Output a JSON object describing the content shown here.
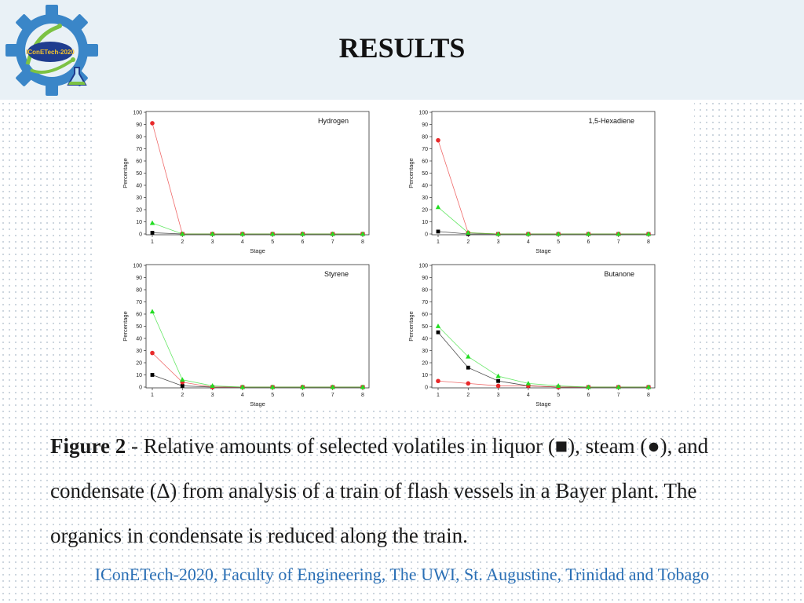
{
  "header": {
    "title": "RESULTS",
    "logo_text": "IConETech-2020",
    "colors": {
      "background": "#e9f1f6",
      "logo_gear": "#3a86c8",
      "logo_center": "#1f3d8f"
    }
  },
  "chart_data": [
    {
      "type": "line",
      "title": "Hydrogen",
      "xlabel": "Stage",
      "ylabel": "Percentage",
      "x": [
        1,
        2,
        3,
        4,
        5,
        6,
        7,
        8
      ],
      "xlim": [
        1,
        8
      ],
      "ylim": [
        0,
        100
      ],
      "yticks": [
        0,
        10,
        20,
        30,
        40,
        50,
        60,
        70,
        80,
        90,
        100
      ],
      "grid": false,
      "series": [
        {
          "marker": "square",
          "color": "#000000",
          "values": [
            1,
            0,
            0,
            0,
            0,
            0,
            0,
            0
          ]
        },
        {
          "marker": "circle",
          "color": "#e8292a",
          "values": [
            91,
            0,
            0,
            0,
            0,
            0,
            0,
            0
          ]
        },
        {
          "marker": "triangle",
          "color": "#22dd22",
          "values": [
            9,
            0,
            0,
            0,
            0,
            0,
            0,
            0
          ]
        }
      ]
    },
    {
      "type": "line",
      "title": "1,5-Hexadiene",
      "xlabel": "Stage",
      "ylabel": "Percentage",
      "x": [
        1,
        2,
        3,
        4,
        5,
        6,
        7,
        8
      ],
      "xlim": [
        1,
        8
      ],
      "ylim": [
        0,
        100
      ],
      "yticks": [
        0,
        10,
        20,
        30,
        40,
        50,
        60,
        70,
        80,
        90,
        100
      ],
      "grid": false,
      "series": [
        {
          "marker": "square",
          "color": "#000000",
          "values": [
            2,
            0,
            0,
            0,
            0,
            0,
            0,
            0
          ]
        },
        {
          "marker": "circle",
          "color": "#e8292a",
          "values": [
            77,
            1,
            0,
            0,
            0,
            0,
            0,
            0
          ]
        },
        {
          "marker": "triangle",
          "color": "#22dd22",
          "values": [
            22,
            1,
            0,
            0,
            0,
            0,
            0,
            0
          ]
        }
      ]
    },
    {
      "type": "line",
      "title": "Styrene",
      "xlabel": "Stage",
      "ylabel": "Percentage",
      "x": [
        1,
        2,
        3,
        4,
        5,
        6,
        7,
        8
      ],
      "xlim": [
        1,
        8
      ],
      "ylim": [
        0,
        100
      ],
      "yticks": [
        0,
        10,
        20,
        30,
        40,
        50,
        60,
        70,
        80,
        90,
        100
      ],
      "grid": false,
      "series": [
        {
          "marker": "square",
          "color": "#000000",
          "values": [
            10,
            1,
            0,
            0,
            0,
            0,
            0,
            0
          ]
        },
        {
          "marker": "circle",
          "color": "#e8292a",
          "values": [
            28,
            4,
            0,
            0,
            0,
            0,
            0,
            0
          ]
        },
        {
          "marker": "triangle",
          "color": "#22dd22",
          "values": [
            62,
            6,
            1,
            0,
            0,
            0,
            0,
            0
          ]
        }
      ]
    },
    {
      "type": "line",
      "title": "Butanone",
      "xlabel": "Stage",
      "ylabel": "Percentage",
      "x": [
        1,
        2,
        3,
        4,
        5,
        6,
        7,
        8
      ],
      "xlim": [
        1,
        8
      ],
      "ylim": [
        0,
        100
      ],
      "yticks": [
        0,
        10,
        20,
        30,
        40,
        50,
        60,
        70,
        80,
        90,
        100
      ],
      "grid": false,
      "series": [
        {
          "marker": "square",
          "color": "#000000",
          "values": [
            45,
            16,
            5,
            1,
            0,
            0,
            0,
            0
          ]
        },
        {
          "marker": "circle",
          "color": "#e8292a",
          "values": [
            5,
            3,
            1,
            1,
            0,
            0,
            0,
            0
          ]
        },
        {
          "marker": "triangle",
          "color": "#22dd22",
          "values": [
            50,
            25,
            9,
            3,
            1,
            0,
            0,
            0
          ]
        }
      ]
    }
  ],
  "caption": {
    "label": "Figure 2",
    "text": " - Relative amounts of selected volatiles in liquor (■), steam (●), and condensate (∆) from analysis of a train of flash vessels in a Bayer plant. The organics in condensate is reduced along the train."
  },
  "footer": {
    "text": "IConETech-2020, Faculty of Engineering, The UWI, St. Augustine, Trinidad and Tobago",
    "color": "#2a6fb5"
  }
}
